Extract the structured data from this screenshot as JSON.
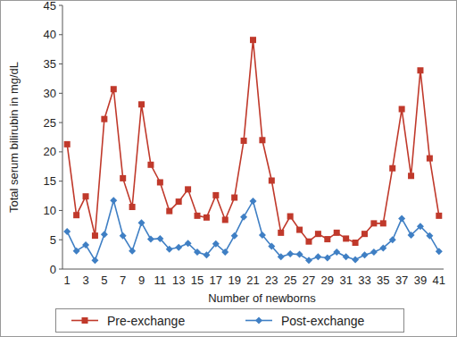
{
  "chart_data": {
    "type": "line",
    "x_label": "Number of newborns",
    "y_label": "Total serum bilirubin in mg/dL",
    "categories": [
      "1",
      null,
      "3",
      null,
      "5",
      null,
      "7",
      null,
      "9",
      null,
      "11",
      null,
      "13",
      null,
      "15",
      null,
      "17",
      null,
      "19",
      null,
      "21",
      null,
      "23",
      null,
      "25",
      null,
      "27",
      null,
      "29",
      null,
      "31",
      null,
      "33",
      null,
      "35",
      null,
      "37",
      null,
      "39",
      null,
      "41"
    ],
    "series": [
      {
        "name": "Pre-exchange",
        "color": "#c0392b",
        "marker": "square",
        "values": [
          21.3,
          9.2,
          12.4,
          5.7,
          25.6,
          30.7,
          15.5,
          10.6,
          28.1,
          17.8,
          14.8,
          9.9,
          11.5,
          13.6,
          9.1,
          8.8,
          12.6,
          8.4,
          12.2,
          21.9,
          39.1,
          22,
          15.1,
          6.2,
          9,
          6.7,
          4.7,
          6,
          5.1,
          6.2,
          5.2,
          4.5,
          6,
          7.8,
          7.8,
          17.2,
          27.3,
          15.9,
          33.9,
          18.9,
          9.1
        ]
      },
      {
        "name": "Post-exchange",
        "color": "#3f7fc4",
        "marker": "diamond",
        "values": [
          6.4,
          3.1,
          4.1,
          1.5,
          5.9,
          11.7,
          5.7,
          3.1,
          7.9,
          5.1,
          5.2,
          3.4,
          3.7,
          4.4,
          2.9,
          2.4,
          4.3,
          2.9,
          5.7,
          8.9,
          11.6,
          5.8,
          3.9,
          2.1,
          2.6,
          2.5,
          1.5,
          2.1,
          1.9,
          2.9,
          2.1,
          1.6,
          2.4,
          2.9,
          3.6,
          5,
          8.6,
          5.8,
          7.3,
          5.7,
          3
        ]
      }
    ],
    "ylim": [
      0,
      45
    ],
    "yticks": [
      0,
      5,
      10,
      15,
      20,
      25,
      30,
      35,
      40,
      45
    ],
    "grid": false,
    "legend": "bottom"
  }
}
